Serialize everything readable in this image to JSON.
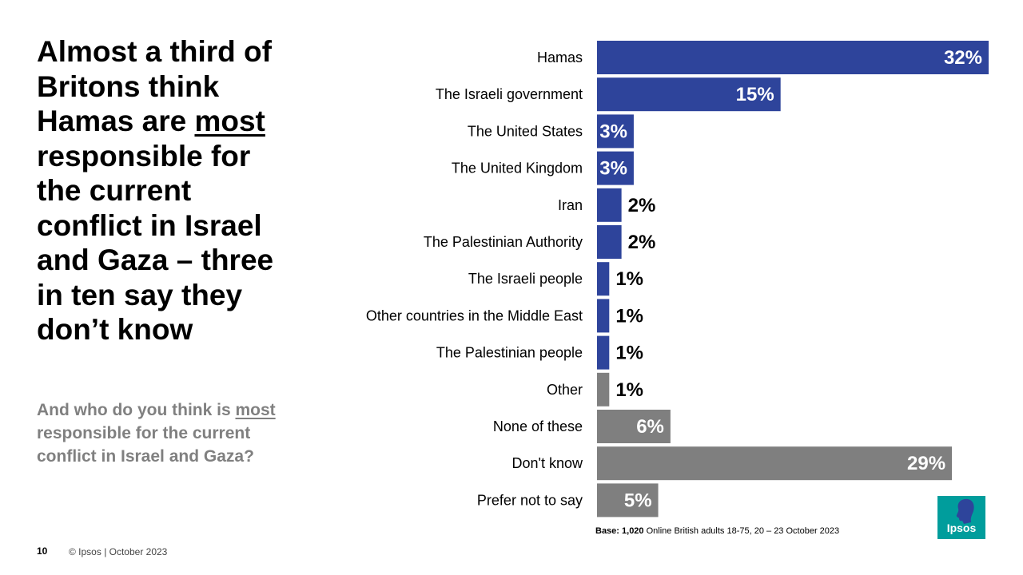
{
  "slide": {
    "headline_parts": {
      "before": "Almost a third of Britons think Hamas are ",
      "emphasis": "most",
      "after": " responsible for the current conflict in Israel and Gaza – three in ten say they don’t know"
    },
    "question_parts": {
      "before": "And who do you think is ",
      "emphasis": "most",
      "after": " responsible for the current conflict in Israel and Gaza?"
    },
    "base_label": "Base: 1,020",
    "base_text": " Online British adults 18-75, 20 – 23 October 2023",
    "page_number": "10",
    "copyright": "© Ipsos | October 2023",
    "logo_text": "Ipsos",
    "colors": {
      "blue": "#2e449b",
      "grey": "#7f7f7f",
      "label_in": "#ffffff",
      "label_out": "#000000",
      "logo": "#009d9c"
    }
  },
  "chart_data": {
    "type": "bar",
    "orientation": "horizontal",
    "title": "And who do you think is most responsible for the current conflict in Israel and Gaza?",
    "unit": "%",
    "xlim": [
      0,
      32
    ],
    "categories": [
      "Hamas",
      "The Israeli government",
      "The United States",
      "The United Kingdom",
      "Iran",
      "The Palestinian Authority",
      "The Israeli people",
      "Other countries in the Middle East",
      "The Palestinian people",
      "Other",
      "None of these",
      "Don't know",
      "Prefer not to say"
    ],
    "values": [
      32,
      15,
      3,
      3,
      2,
      2,
      1,
      1,
      1,
      1,
      6,
      29,
      5
    ],
    "labels": [
      "32%",
      "15%",
      "3%",
      "3%",
      "2%",
      "2%",
      "1%",
      "1%",
      "1%",
      "1%",
      "6%",
      "29%",
      "5%"
    ],
    "series_group": [
      "blue",
      "blue",
      "blue",
      "blue",
      "blue",
      "blue",
      "blue",
      "blue",
      "blue",
      "grey",
      "grey",
      "grey",
      "grey"
    ]
  }
}
